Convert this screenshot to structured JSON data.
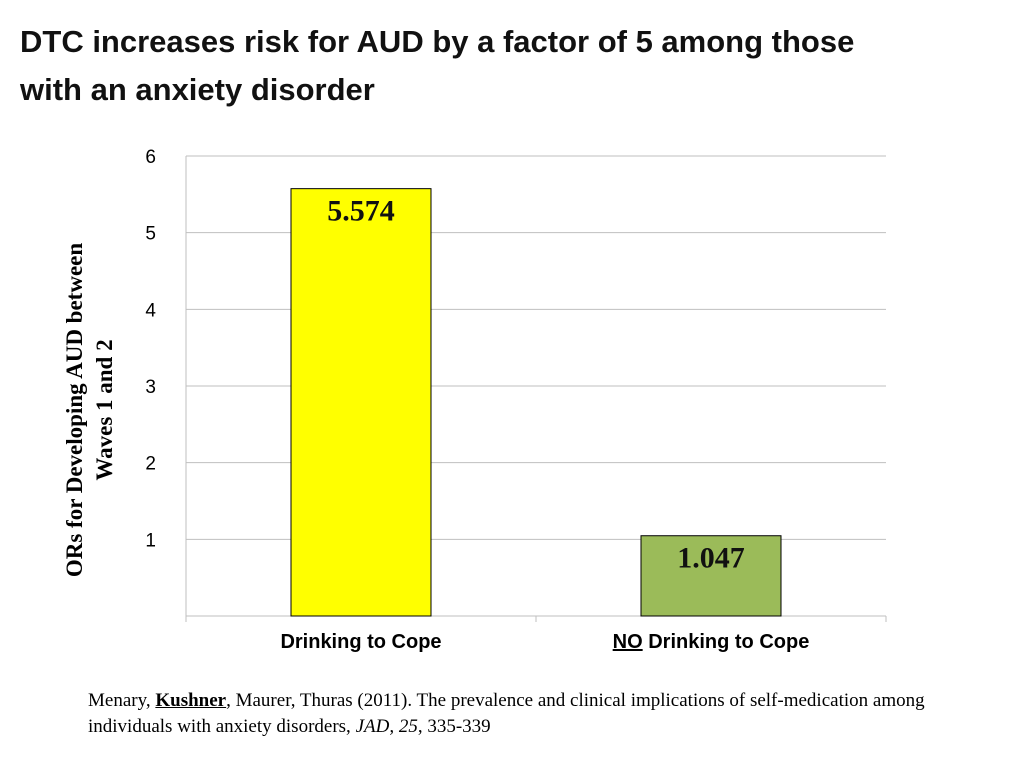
{
  "slide": {
    "title_line1": "DTC increases risk for AUD by a factor of 5 among those",
    "title_line2": "with an anxiety disorder"
  },
  "chart_data": {
    "type": "bar",
    "categories": [
      "Drinking to Cope",
      "NO Drinking to Cope"
    ],
    "category_prefix_underlined": [
      "",
      "NO"
    ],
    "category_suffix": [
      "Drinking to Cope",
      " Drinking to Cope"
    ],
    "values": [
      5.574,
      1.047
    ],
    "data_labels": [
      "5.574",
      "1.047"
    ],
    "bar_colors": [
      "#ffff00",
      "#9bbb59"
    ],
    "ylabel": "ORs for Developing AUD between Waves 1 and 2",
    "ylabel_line1": "ORs for Developing AUD between",
    "ylabel_line2": "Waves 1 and 2",
    "ylim": [
      0,
      6
    ],
    "yticks": [
      1,
      2,
      3,
      4,
      5,
      6
    ],
    "grid": true,
    "legend": "none"
  },
  "citation": {
    "part1": "Menary, ",
    "author_bold": "Kushner",
    "part2": ", Maurer, Thuras (2011). The prevalence and clinical implications of self-medication among individuals with anxiety disorders, ",
    "journal": "JAD, 25",
    "part3": ", 335-339"
  }
}
